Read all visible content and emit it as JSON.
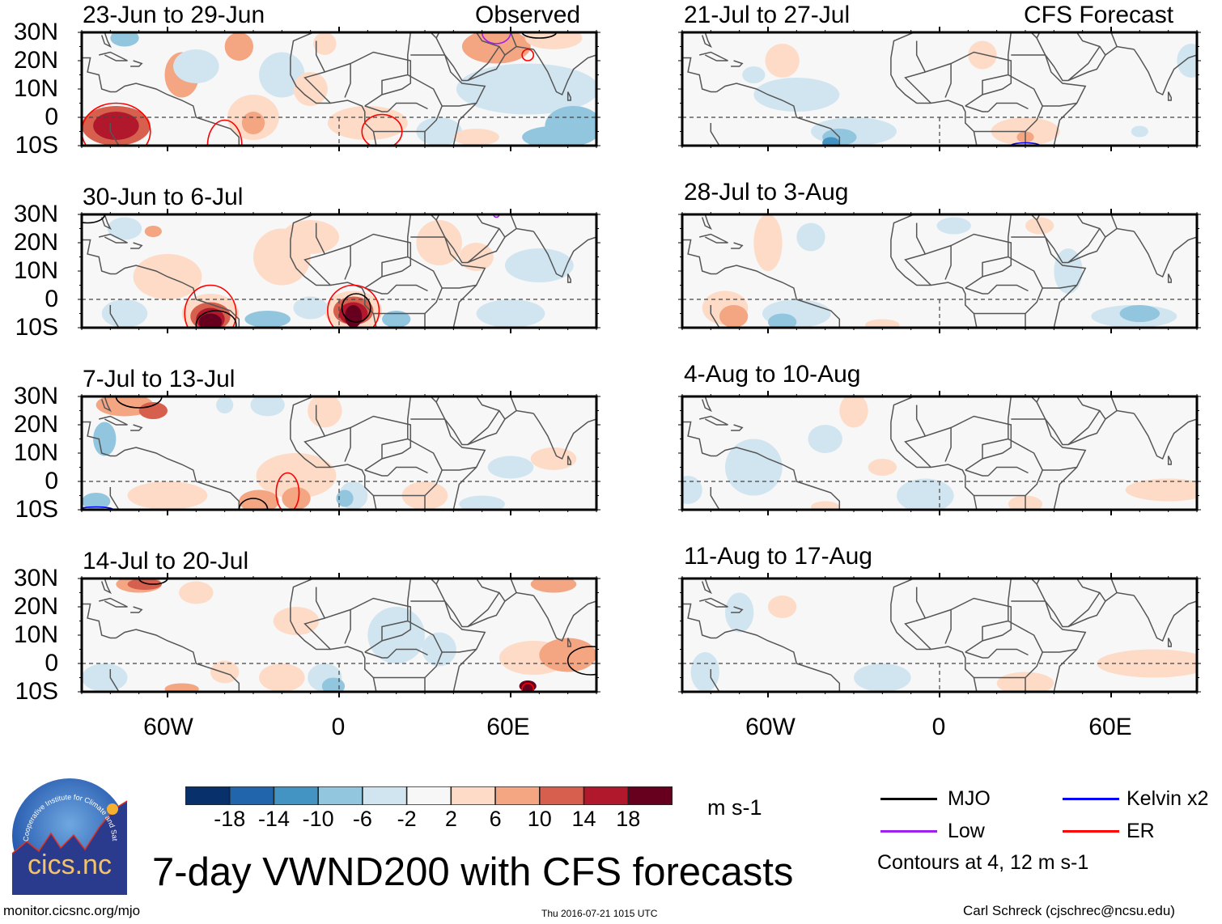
{
  "figure": {
    "title": "7-day VWND200 with CFS forecasts",
    "left_column_label": "Observed",
    "right_column_label": "CFS Forecast",
    "url": "monitor.cicsnc.org/mjo",
    "timestamp": "Thu 2016-07-21 1015 UTC",
    "author": "Carl Schreck (cjschrec@ncsu.edu)",
    "logo": {
      "text": "cics.nc",
      "ring_text": "Cooperative Institute for Climate and Satellites"
    }
  },
  "chart_data": {
    "type": "heatmap",
    "variable": "VWND200 anomaly",
    "units": "m s-1",
    "lat_ticks": [
      "30N",
      "20N",
      "10N",
      "0",
      "10S"
    ],
    "lon_ticks": [
      "60W",
      "0",
      "60E"
    ],
    "lat_range": [
      -10,
      30
    ],
    "lon_range": [
      -90,
      90
    ],
    "panels": [
      {
        "id": "obs-1",
        "column": "Observed",
        "period": "23-Jun to 29-Jun",
        "features": {
          "anomalies": "weak-to-moderate; positive near South America and eastern Atlantic, negative over Indian Ocean",
          "contours": [
            "ER near 75W-60W 0-10S",
            "ER near 40W 0-10S",
            "ER near 15E 5S",
            "Low near 55E 30N",
            "MJO near 70E 30N"
          ]
        }
      },
      {
        "id": "obs-2",
        "column": "Observed",
        "period": "30-Jun to 6-Jul",
        "features": {
          "anomalies": "strong positive near 45W 5S and 5E 5S (>18 m s-1)",
          "contours": [
            "ER/MJO near 45W 5S",
            "ER/MJO near 5E 3S",
            "MJO near 88W 30N"
          ]
        }
      },
      {
        "id": "obs-3",
        "column": "Observed",
        "period": "7-Jul to 13-Jul",
        "features": {
          "anomalies": "weak positive Atlantic, weak negative scattered",
          "contours": [
            "MJO near 70W 28N",
            "MJO near 30W 10S",
            "ER near 18W 5S",
            "Kelvin near 85W 10S"
          ]
        }
      },
      {
        "id": "obs-4",
        "column": "Observed",
        "period": "14-Jul to 20-Jul",
        "features": {
          "anomalies": "weak positive Caribbean and India, weak negative Africa",
          "contours": [
            "MJO near 65W 30N",
            "MJO near 85E 3N",
            "ER near 65E 9S"
          ]
        }
      },
      {
        "id": "fcst-1",
        "column": "CFS Forecast",
        "period": "21-Jul to 27-Jul",
        "features": {
          "anomalies": "weak negative Atlantic near 30W 5S, weak positive East Africa",
          "contours": [
            "Kelvin near 30E 10S"
          ]
        }
      },
      {
        "id": "fcst-2",
        "column": "CFS Forecast",
        "period": "28-Jul to 3-Aug",
        "features": {
          "anomalies": "weak positive near 65W 5S, weak negative near 70E 5S",
          "contours": []
        }
      },
      {
        "id": "fcst-3",
        "column": "CFS Forecast",
        "period": "4-Aug to 10-Aug",
        "features": {
          "anomalies": "weak, scattered",
          "contours": []
        }
      },
      {
        "id": "fcst-4",
        "column": "CFS Forecast",
        "period": "11-Aug to 17-Aug",
        "features": {
          "anomalies": "weak positive Indian Ocean near 75E 3N, weak negative near 20W 5S",
          "contours": []
        }
      }
    ],
    "colorbar": {
      "labels": [
        "-18",
        "-14",
        "-10",
        "-6",
        "-2",
        "2",
        "6",
        "10",
        "14",
        "18"
      ],
      "colors": [
        "#08306b",
        "#2166ac",
        "#4393c3",
        "#92c5de",
        "#d1e5f0",
        "#f7f7f7",
        "#fddbc7",
        "#f4a582",
        "#d6604d",
        "#b2182b",
        "#67001f"
      ],
      "units": "m s-1"
    },
    "legend": [
      {
        "label": "MJO",
        "color": "#000000"
      },
      {
        "label": "Kelvin x2",
        "color": "#0000ff"
      },
      {
        "label": "Low",
        "color": "#a020f0"
      },
      {
        "label": "ER",
        "color": "#ff0000"
      }
    ],
    "contour_note": "Contours at 4, 12 m s-1"
  }
}
